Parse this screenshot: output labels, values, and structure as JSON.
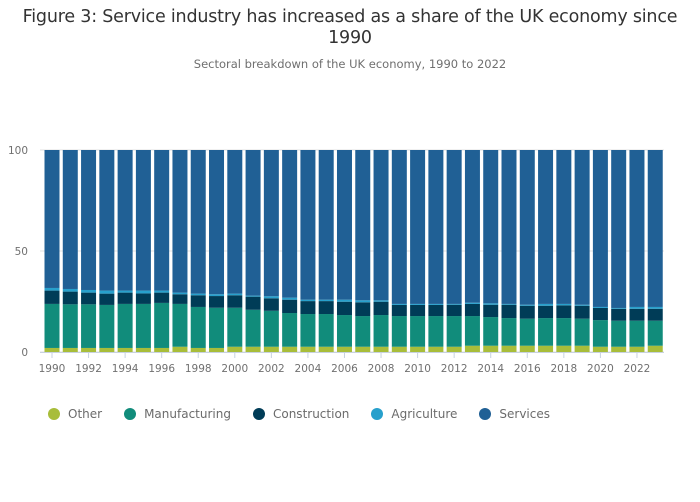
{
  "chart_data": {
    "type": "bar",
    "stacked": true,
    "title": "Figure 3: Service industry has increased as a share of the UK economy since 1990",
    "subtitle": "Sectoral breakdown of the UK economy, 1990 to 2022",
    "xlabel": "",
    "ylabel": "",
    "ylim": [
      0,
      100
    ],
    "yticks": [
      "0",
      "50",
      "100"
    ],
    "xticks": [
      "1990",
      "1992",
      "1994",
      "1996",
      "1998",
      "2000",
      "2002",
      "2004",
      "2006",
      "2008",
      "2010",
      "2012",
      "2014",
      "2016",
      "2018",
      "2020",
      "2022"
    ],
    "grid": true,
    "legend_position": "bottom-left",
    "categories": [
      "1990",
      "1991",
      "1992",
      "1993",
      "1994",
      "1995",
      "1996",
      "1997",
      "1998",
      "1999",
      "2000",
      "2001",
      "2002",
      "2003",
      "2004",
      "2005",
      "2006",
      "2007",
      "2008",
      "2009",
      "2010",
      "2011",
      "2012",
      "2013",
      "2014",
      "2015",
      "2016",
      "2017",
      "2018",
      "2019",
      "2020",
      "2021",
      "2022",
      "2023"
    ],
    "series": [
      {
        "name": "Other",
        "color": "#a8bd3a",
        "values": [
          2.0,
          2.0,
          2.0,
          2.0,
          2.0,
          2.0,
          2.0,
          2.6,
          2.0,
          2.0,
          2.6,
          2.6,
          2.6,
          2.6,
          2.6,
          2.6,
          2.6,
          2.6,
          2.6,
          2.6,
          2.6,
          2.6,
          2.6,
          3.1,
          3.1,
          3.1,
          3.1,
          3.1,
          3.1,
          3.1,
          2.6,
          2.6,
          2.6,
          3.1
        ]
      },
      {
        "name": "Manufacturing",
        "color": "#118c7b",
        "values": [
          21.8,
          21.6,
          21.6,
          21.3,
          21.8,
          21.8,
          22.3,
          21.2,
          20.3,
          19.9,
          19.3,
          18.3,
          17.8,
          16.7,
          16.2,
          16.2,
          15.7,
          15.2,
          15.7,
          15.2,
          15.2,
          15.2,
          15.2,
          14.7,
          14.2,
          13.7,
          13.4,
          13.7,
          13.7,
          13.4,
          13.2,
          12.9,
          12.9,
          12.4
        ]
      },
      {
        "name": "Construction",
        "color": "#003c57",
        "values": [
          6.6,
          6.3,
          5.8,
          5.6,
          5.6,
          5.2,
          5.1,
          4.8,
          5.8,
          5.8,
          6.2,
          6.5,
          6.2,
          6.6,
          6.4,
          6.4,
          6.6,
          6.8,
          6.6,
          5.5,
          5.5,
          5.5,
          5.6,
          6.0,
          6.1,
          6.6,
          6.4,
          6.1,
          6.3,
          6.4,
          6.0,
          5.9,
          5.9,
          5.9
        ]
      },
      {
        "name": "Agriculture",
        "color": "#27a0cc",
        "values": [
          1.3,
          1.3,
          1.3,
          1.5,
          1.0,
          1.4,
          1.0,
          0.8,
          0.8,
          0.9,
          0.8,
          0.5,
          1.0,
          1.0,
          0.7,
          0.7,
          1.0,
          1.0,
          0.7,
          0.5,
          0.5,
          0.5,
          0.4,
          0.6,
          0.7,
          0.4,
          0.5,
          0.9,
          0.7,
          0.5,
          0.5,
          0.4,
          0.9,
          0.9
        ]
      },
      {
        "name": "Services",
        "color": "#206095",
        "values": [
          68.3,
          68.8,
          69.3,
          69.6,
          69.6,
          69.6,
          69.6,
          70.6,
          71.1,
          71.4,
          71.1,
          72.1,
          72.4,
          73.1,
          74.1,
          74.1,
          74.1,
          74.4,
          74.4,
          76.2,
          76.2,
          76.2,
          76.2,
          75.6,
          75.9,
          76.2,
          76.6,
          76.2,
          76.2,
          76.6,
          77.7,
          78.2,
          77.7,
          77.7
        ]
      }
    ]
  }
}
